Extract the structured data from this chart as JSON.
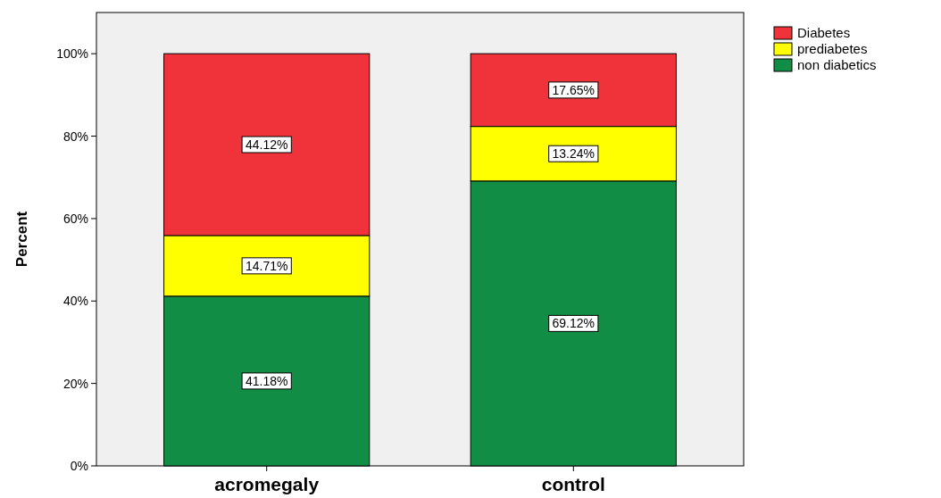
{
  "chart_data": {
    "type": "bar",
    "stacked": true,
    "ylabel": "Percent",
    "categories": [
      "acromegaly",
      "control"
    ],
    "series": [
      {
        "name": "non diabetics",
        "color": "#118d45",
        "values": [
          41.18,
          69.12
        ],
        "value_labels": [
          "41.18%",
          "69.12%"
        ]
      },
      {
        "name": "prediabetes",
        "color": "#ffff00",
        "values": [
          14.71,
          13.24
        ],
        "value_labels": [
          "14.71%",
          "13.24%"
        ]
      },
      {
        "name": "Diabetes",
        "color": "#f0333a",
        "values": [
          44.12,
          17.65
        ],
        "value_labels": [
          "44.12%",
          "17.65%"
        ]
      }
    ],
    "ylim": [
      0,
      110
    ],
    "yticks": [
      {
        "value": 0,
        "label": "0%"
      },
      {
        "value": 20,
        "label": "20%"
      },
      {
        "value": 40,
        "label": "40%"
      },
      {
        "value": 60,
        "label": "60%"
      },
      {
        "value": 80,
        "label": "80%"
      },
      {
        "value": 100,
        "label": "100%"
      }
    ],
    "grid": false,
    "legend": "top right"
  }
}
